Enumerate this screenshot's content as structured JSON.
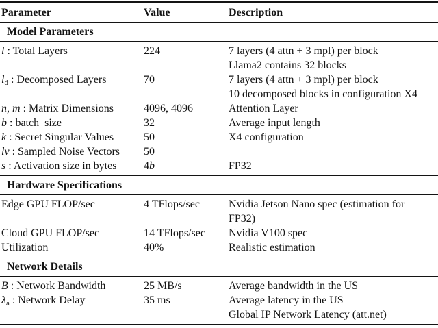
{
  "colors": {
    "text": "#141414",
    "rule": "#141414",
    "background": "#ffffff"
  },
  "table": {
    "columns": [
      "Parameter",
      "Value",
      "Description"
    ],
    "sections": [
      {
        "title": "Model Parameters",
        "rows": [
          {
            "param": [
              {
                "t": "l",
                "i": true
              },
              {
                "t": " : Total Layers"
              }
            ],
            "value": [
              {
                "t": "224"
              }
            ],
            "desc": [
              "7 layers (4 attn + 3 mpl) per block",
              "Llama2 contains 32 blocks"
            ]
          },
          {
            "param": [
              {
                "t": "l",
                "i": true
              },
              {
                "t": "d",
                "sub": true
              },
              {
                "t": " : Decomposed Layers"
              }
            ],
            "value": [
              {
                "t": "70"
              }
            ],
            "desc": [
              "7 layers (4 attn + 3 mpl) per block",
              "10 decomposed blocks in configuration X4"
            ]
          },
          {
            "param": [
              {
                "t": "n, m",
                "i": true
              },
              {
                "t": " : Matrix Dimensions"
              }
            ],
            "value": [
              {
                "t": "4096, 4096"
              }
            ],
            "desc": [
              "Attention Layer"
            ]
          },
          {
            "param": [
              {
                "t": "b",
                "i": true
              },
              {
                "t": " : batch_size"
              }
            ],
            "value": [
              {
                "t": "32"
              }
            ],
            "desc": [
              "Average input length"
            ]
          },
          {
            "param": [
              {
                "t": "k",
                "i": true
              },
              {
                "t": " : Secret Singular Values"
              }
            ],
            "value": [
              {
                "t": "50"
              }
            ],
            "desc": [
              "X4 configuration"
            ]
          },
          {
            "param": [
              {
                "t": "l",
                "i": true
              },
              {
                "t": "v",
                "sub": true,
                "i": true
              },
              {
                "t": " : Sampled Noise Vectors"
              }
            ],
            "value": [
              {
                "t": "50"
              }
            ],
            "desc": []
          },
          {
            "param": [
              {
                "t": "s",
                "i": true
              },
              {
                "t": " : Activation size in bytes"
              }
            ],
            "value": [
              {
                "t": "4"
              },
              {
                "t": "b",
                "i": true
              }
            ],
            "desc": [
              "FP32"
            ]
          }
        ]
      },
      {
        "title": "Hardware Specifications",
        "rows": [
          {
            "param": [
              {
                "t": "Edge GPU FLOP/sec"
              }
            ],
            "value": [
              {
                "t": "4 TFlops/sec"
              }
            ],
            "desc": [
              "Nvidia Jetson Nano spec (estimation for",
              "FP32)"
            ]
          },
          {
            "param": [
              {
                "t": "Cloud GPU FLOP/sec"
              }
            ],
            "value": [
              {
                "t": "14 TFlops/sec"
              }
            ],
            "desc": [
              "Nvidia V100 spec"
            ]
          },
          {
            "param": [
              {
                "t": "Utilization"
              }
            ],
            "value": [
              {
                "t": "40%"
              }
            ],
            "desc": [
              "Realistic estimation"
            ]
          }
        ]
      },
      {
        "title": "Network Details",
        "rows": [
          {
            "param": [
              {
                "t": "B",
                "i": true
              },
              {
                "t": " : Network Bandwidth"
              }
            ],
            "value": [
              {
                "t": "25 MB/s"
              }
            ],
            "desc": [
              "Average bandwidth in the US"
            ]
          },
          {
            "param": [
              {
                "t": "λ",
                "i": true
              },
              {
                "t": "a",
                "sub": true
              },
              {
                "t": " : Network Delay"
              }
            ],
            "value": [
              {
                "t": "35 ms"
              }
            ],
            "desc": [
              "Average latency in the US",
              "Global IP Network Latency (att.net)"
            ]
          }
        ]
      }
    ]
  }
}
